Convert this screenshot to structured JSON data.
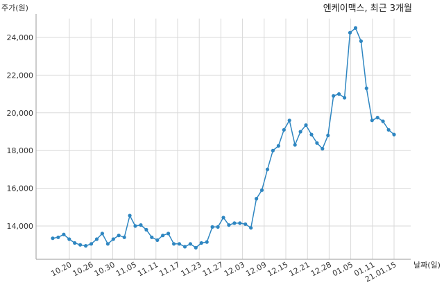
{
  "chart_data": {
    "type": "line",
    "title": "엔케이맥스, 최근 3개월",
    "ylabel": "주가(원)",
    "xlabel": "날짜(일)",
    "ylim": [
      12500,
      25000
    ],
    "y_ticks": [
      14000,
      16000,
      18000,
      20000,
      22000,
      24000
    ],
    "y_tick_labels": [
      "14,000",
      "16,000",
      "18,000",
      "20,000",
      "22,000",
      "24,000"
    ],
    "x_tick_labels": [
      "10.20",
      "10.26",
      "10.30",
      "11.05",
      "11.11",
      "11.17",
      "11.23",
      "11.27",
      "12.03",
      "12.09",
      "12.15",
      "12.21",
      "12.28",
      "01.05",
      "01.11",
      "21.01.15"
    ],
    "grid": true,
    "color": "#2e86c1",
    "series": [
      {
        "values": [
          13350,
          13400,
          13550,
          13300,
          13100,
          13000,
          12950,
          13050,
          13300,
          13600,
          13050,
          13300,
          13500,
          13400,
          14550,
          14000,
          14050,
          13800,
          13400,
          13250,
          13500,
          13600,
          13050,
          13050,
          12900,
          13050,
          12850,
          13100,
          13150,
          13950,
          13950,
          14450,
          14050,
          14150,
          14150,
          14100,
          13900,
          15450,
          15900,
          17000,
          18000,
          18250,
          19100,
          19600,
          18300,
          19000,
          19350,
          18850,
          18400,
          18100,
          18800,
          20900,
          21000,
          20800,
          24250,
          24500,
          23800,
          21300,
          19600,
          19750,
          19550,
          19100,
          18850
        ]
      }
    ]
  }
}
